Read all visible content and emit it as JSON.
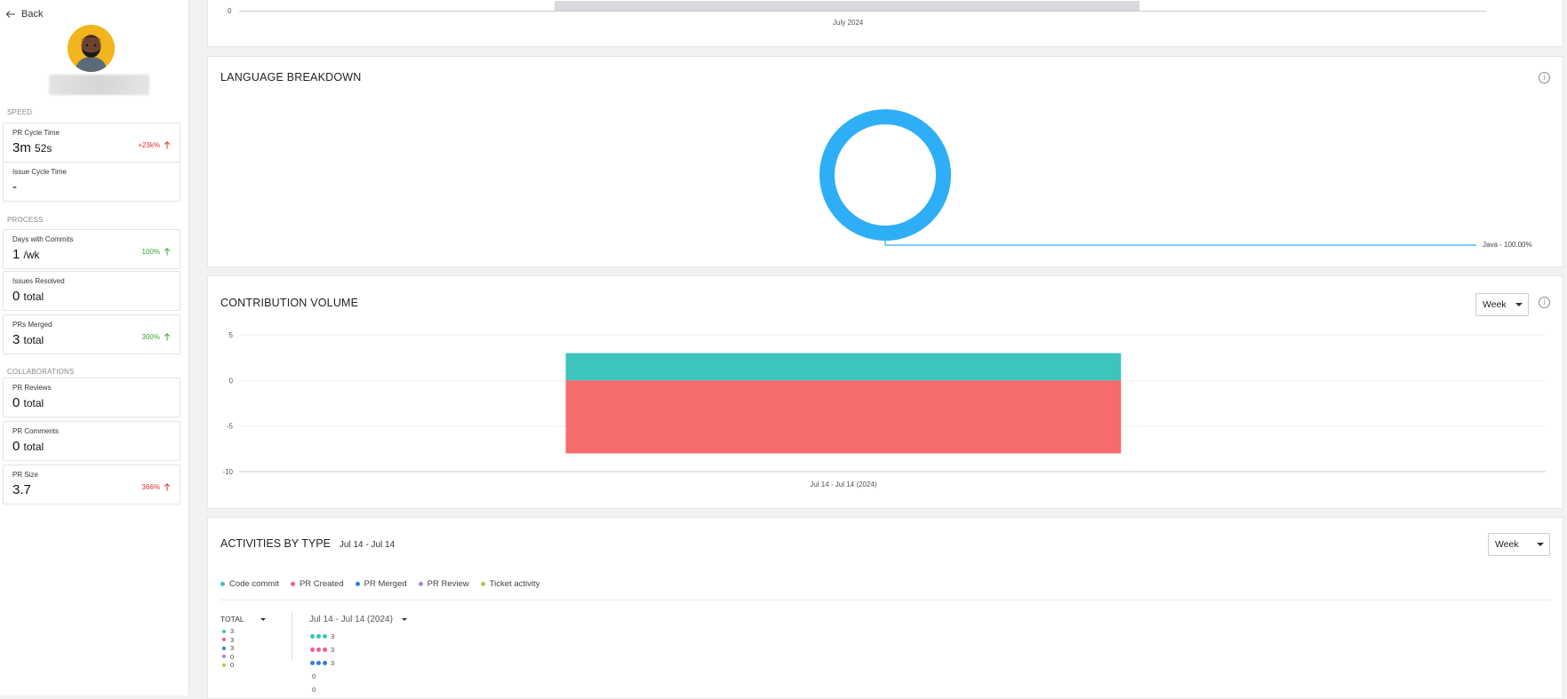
{
  "sidebar": {
    "back_label": "Back",
    "sections": {
      "speed": "SPEED",
      "process": "PROCESS",
      "collaborations": "COLLABORATIONS"
    },
    "metrics": [
      {
        "title": "PR Cycle Time",
        "value": "3m",
        "unit": "52s",
        "delta": "+23k%",
        "trend": "up",
        "tone": "red"
      },
      {
        "title": "Issue Cycle Time",
        "value": "-",
        "unit": "",
        "delta": "",
        "trend": "",
        "tone": ""
      },
      {
        "title": "Days with Commits",
        "value": "1",
        "unit": "/wk",
        "delta": "100%",
        "trend": "up",
        "tone": "green"
      },
      {
        "title": "Issues Resolved",
        "value": "0",
        "unit": "total",
        "delta": "",
        "trend": "",
        "tone": ""
      },
      {
        "title": "PRs Merged",
        "value": "3",
        "unit": "total",
        "delta": "300%",
        "trend": "up",
        "tone": "green"
      },
      {
        "title": "PR Reviews",
        "value": "0",
        "unit": "total",
        "delta": "",
        "trend": "",
        "tone": ""
      },
      {
        "title": "PR Comments",
        "value": "0",
        "unit": "total",
        "delta": "",
        "trend": "",
        "tone": ""
      },
      {
        "title": "PR Size",
        "value": "3.7",
        "unit": "",
        "delta": "366%",
        "trend": "up",
        "tone": "red"
      }
    ]
  },
  "top_card": {
    "y_tick": "0",
    "x_label": "July 2024"
  },
  "language": {
    "title": "LANGUAGE BREAKDOWN",
    "label": "Java - 100.00%",
    "chart_data": {
      "type": "pie",
      "categories": [
        "Java"
      ],
      "values": [
        100.0
      ],
      "colors": [
        "#2eaef7"
      ]
    }
  },
  "contribution": {
    "title": "CONTRIBUTION VOLUME",
    "period": "Week",
    "chart_data": {
      "type": "bar",
      "categories": [
        "Jul 14 - Jul 14 (2024)"
      ],
      "series": [
        {
          "values": [
            3
          ],
          "color": "#3cc4bd"
        },
        {
          "values": [
            -8
          ],
          "color": "#f66b6b"
        }
      ],
      "ylim": [
        -10,
        5
      ],
      "y_ticks": [
        "5",
        "0",
        "-5",
        "-10"
      ]
    }
  },
  "activities": {
    "title": "ACTIVITIES BY TYPE",
    "range": "Jul 14 - Jul 14",
    "period": "Week",
    "legend": [
      {
        "label": "Code commit",
        "color": "#3cc4bd"
      },
      {
        "label": "PR Created",
        "color": "#f25c9a"
      },
      {
        "label": "PR Merged",
        "color": "#2f7fe0"
      },
      {
        "label": "PR Review",
        "color": "#b07ef0"
      },
      {
        "label": "Ticket activity",
        "color": "#c9c13a"
      }
    ],
    "total_label": "TOTAL",
    "totals": [
      "3",
      "3",
      "3",
      "0",
      "0"
    ],
    "column_label": "Jul 14 - Jul 14 (2024)",
    "column_values": [
      "3",
      "3",
      "3",
      "0",
      "0"
    ]
  }
}
